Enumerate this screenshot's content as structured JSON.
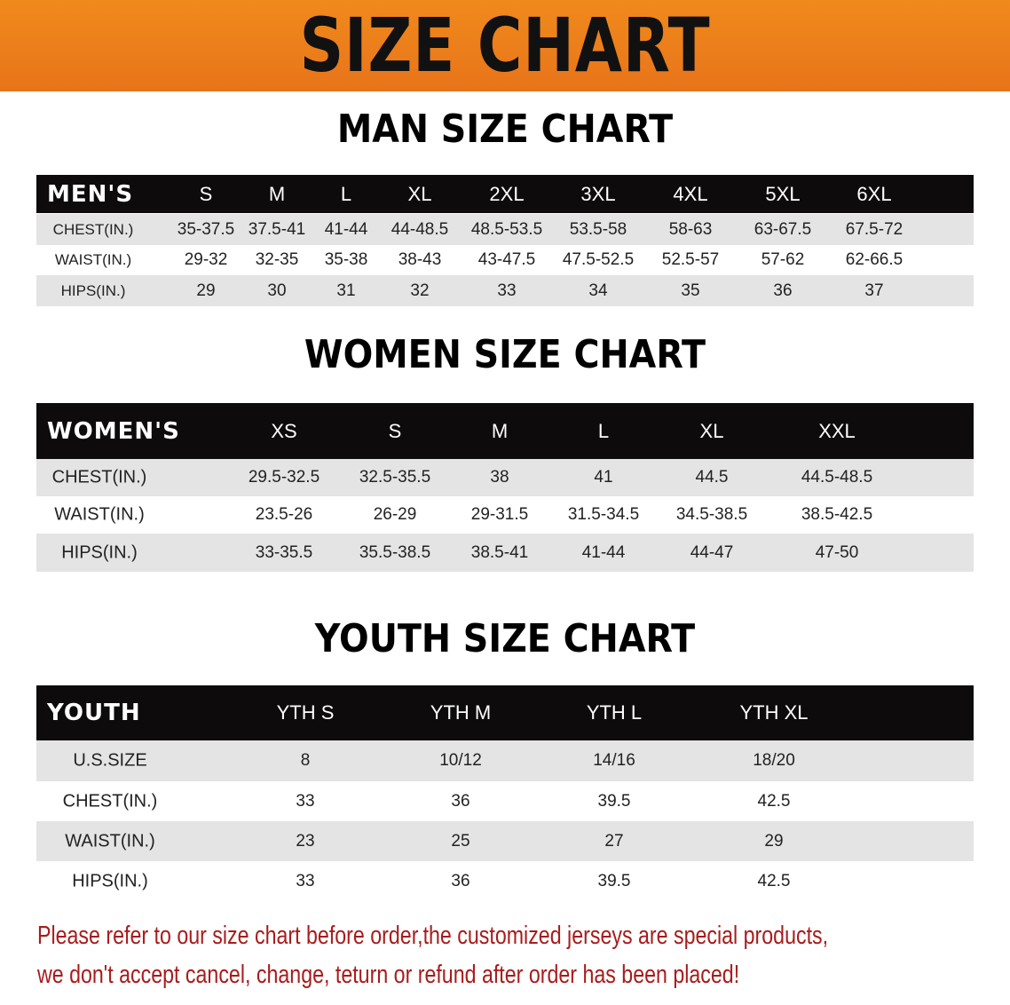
{
  "banner": {
    "title": "SIZE CHART",
    "color": "#ec7f1b"
  },
  "men": {
    "title": "MAN SIZE CHART",
    "header": [
      "MEN'S",
      "S",
      "M",
      "L",
      "XL",
      "2XL",
      "3XL",
      "4XL",
      "5XL",
      "6XL"
    ],
    "rows": [
      [
        "CHEST(IN.)",
        "35-37.5",
        "37.5-41",
        "41-44",
        "44-48.5",
        "48.5-53.5",
        "53.5-58",
        "58-63",
        "63-67.5",
        "67.5-72"
      ],
      [
        "WAIST(IN.)",
        "29-32",
        "32-35",
        "35-38",
        "38-43",
        "43-47.5",
        "47.5-52.5",
        "52.5-57",
        "57-62",
        "62-66.5"
      ],
      [
        "HIPS(IN.)",
        "29",
        "30",
        "31",
        "32",
        "33",
        "34",
        "35",
        "36",
        "37"
      ]
    ]
  },
  "women": {
    "title": "WOMEN SIZE CHART",
    "header": [
      "WOMEN'S",
      "XS",
      "S",
      "M",
      "L",
      "XL",
      "XXL"
    ],
    "rows": [
      [
        "CHEST(IN.)",
        "29.5-32.5",
        "32.5-35.5",
        "38",
        "41",
        "44.5",
        "44.5-48.5"
      ],
      [
        "WAIST(IN.)",
        "23.5-26",
        "26-29",
        "29-31.5",
        "31.5-34.5",
        "34.5-38.5",
        "38.5-42.5"
      ],
      [
        "HIPS(IN.)",
        "33-35.5",
        "35.5-38.5",
        "38.5-41",
        "41-44",
        "44-47",
        "47-50"
      ]
    ]
  },
  "youth": {
    "title": "YOUTH SIZE CHART",
    "header": [
      "YOUTH",
      "YTH S",
      "YTH M",
      "YTH L",
      "YTH XL"
    ],
    "rows": [
      [
        "U.S.SIZE",
        "8",
        "10/12",
        "14/16",
        "18/20"
      ],
      [
        "CHEST(IN.)",
        "33",
        "36",
        "39.5",
        "42.5"
      ],
      [
        "WAIST(IN.)",
        "23",
        "25",
        "27",
        "29"
      ],
      [
        "HIPS(IN.)",
        "33",
        "36",
        "39.5",
        "42.5"
      ]
    ]
  },
  "notice": {
    "line1": "Please refer to our size chart before order,the customized jerseys are special products,",
    "line2": "we don't accept cancel, change, teturn or refund after order has been placed!",
    "color": "#a81c1c"
  }
}
